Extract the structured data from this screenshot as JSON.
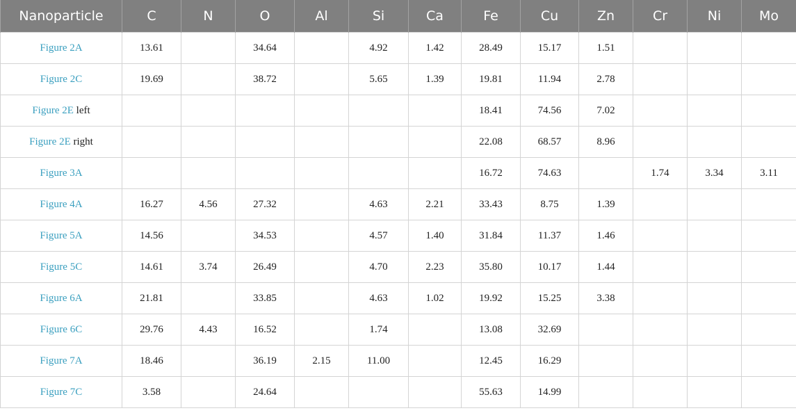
{
  "table": {
    "headers": [
      "Nanoparticle",
      "C",
      "N",
      "O",
      "Al",
      "Si",
      "Ca",
      "Fe",
      "Cu",
      "Zn",
      "Cr",
      "Ni",
      "Mo"
    ],
    "rows": [
      {
        "link": "Figure 2A",
        "suffix": "",
        "values": [
          "13.61",
          "",
          "34.64",
          "",
          "4.92",
          "1.42",
          "28.49",
          "15.17",
          "1.51",
          "",
          "",
          ""
        ]
      },
      {
        "link": "Figure 2C",
        "suffix": "",
        "values": [
          "19.69",
          "",
          "38.72",
          "",
          "5.65",
          "1.39",
          "19.81",
          "11.94",
          "2.78",
          "",
          "",
          ""
        ]
      },
      {
        "link": "Figure 2E",
        "suffix": "left",
        "values": [
          "",
          "",
          "",
          "",
          "",
          "",
          "18.41",
          "74.56",
          "7.02",
          "",
          "",
          ""
        ]
      },
      {
        "link": "Figure 2E",
        "suffix": "right",
        "values": [
          "",
          "",
          "",
          "",
          "",
          "",
          "22.08",
          "68.57",
          "8.96",
          "",
          "",
          ""
        ]
      },
      {
        "link": "Figure 3A",
        "suffix": "",
        "values": [
          "",
          "",
          "",
          "",
          "",
          "",
          "16.72",
          "74.63",
          "",
          "1.74",
          "3.34",
          "3.11"
        ]
      },
      {
        "link": "Figure 4A",
        "suffix": "",
        "values": [
          "16.27",
          "4.56",
          "27.32",
          "",
          "4.63",
          "2.21",
          "33.43",
          "8.75",
          "1.39",
          "",
          "",
          ""
        ]
      },
      {
        "link": "Figure 5A",
        "suffix": "",
        "values": [
          "14.56",
          "",
          "34.53",
          "",
          "4.57",
          "1.40",
          "31.84",
          "11.37",
          "1.46",
          "",
          "",
          ""
        ]
      },
      {
        "link": "Figure 5C",
        "suffix": "",
        "values": [
          "14.61",
          "3.74",
          "26.49",
          "",
          "4.70",
          "2.23",
          "35.80",
          "10.17",
          "1.44",
          "",
          "",
          ""
        ]
      },
      {
        "link": "Figure 6A",
        "suffix": "",
        "values": [
          "21.81",
          "",
          "33.85",
          "",
          "4.63",
          "1.02",
          "19.92",
          "15.25",
          "3.38",
          "",
          "",
          ""
        ]
      },
      {
        "link": "Figure 6C",
        "suffix": "",
        "values": [
          "29.76",
          "4.43",
          "16.52",
          "",
          "1.74",
          "",
          "13.08",
          "32.69",
          "",
          "",
          "",
          ""
        ]
      },
      {
        "link": "Figure 7A",
        "suffix": "",
        "values": [
          "18.46",
          "",
          "36.19",
          "2.15",
          "11.00",
          "",
          "12.45",
          "16.29",
          "",
          "",
          "",
          ""
        ]
      },
      {
        "link": "Figure 7C",
        "suffix": "",
        "values": [
          "3.58",
          "",
          "24.64",
          "",
          "",
          "",
          "55.63",
          "14.99",
          "",
          "",
          "",
          ""
        ]
      }
    ]
  }
}
